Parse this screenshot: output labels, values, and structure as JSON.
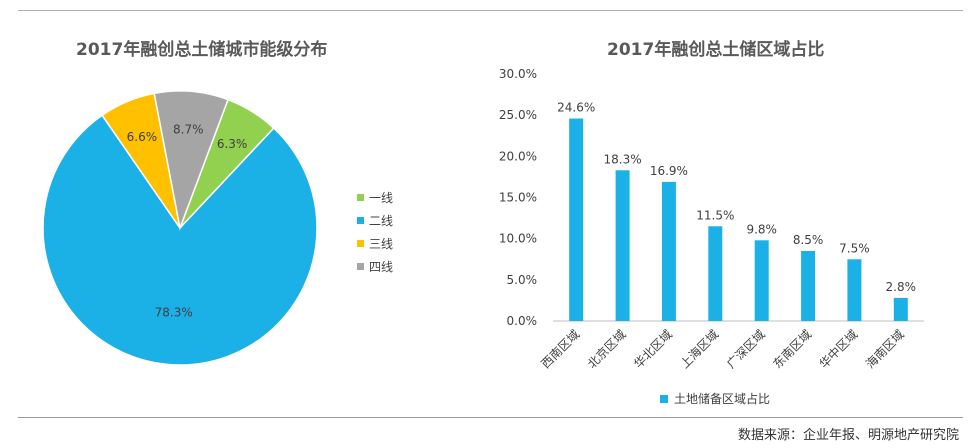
{
  "pie_chart": {
    "title": "2017年融创总土储城市能级分布"
  },
  "bar_chart": {
    "title": "2017年融创总土储区域占比"
  },
  "source": "数据来源：企业年报、明源地产研究院",
  "colors": {
    "first_tier": "#92d050",
    "second_tier": "#1bb1e7",
    "third_tier": "#ffc000",
    "fourth_tier": "#a5a5a5",
    "bar": "#1bb1e7"
  },
  "chart_data": [
    {
      "type": "pie",
      "title": "2017年融创总土储城市能级分布",
      "series": [
        {
          "name": "一线",
          "value": 6.3,
          "label": "6.3%",
          "color": "#92d050"
        },
        {
          "name": "二线",
          "value": 78.3,
          "label": "78.3%",
          "color": "#1bb1e7"
        },
        {
          "name": "三线",
          "value": 6.6,
          "label": "6.6%",
          "color": "#ffc000"
        },
        {
          "name": "四线",
          "value": 8.7,
          "label": "8.7%",
          "color": "#a5a5a5"
        }
      ],
      "legend_position": "right"
    },
    {
      "type": "bar",
      "title": "2017年融创总土储区域占比",
      "categories": [
        "西南区域",
        "北京区域",
        "华北区域",
        "上海区域",
        "广深区域",
        "东南区域",
        "华中区域",
        "海南区域"
      ],
      "series": [
        {
          "name": "土地储备区域占比",
          "values": [
            24.6,
            18.3,
            16.9,
            11.5,
            9.8,
            8.5,
            7.5,
            2.8
          ],
          "labels": [
            "24.6%",
            "18.3%",
            "16.9%",
            "11.5%",
            "9.8%",
            "8.5%",
            "7.5%",
            "2.8%"
          ]
        }
      ],
      "yticks": [
        "0.0%",
        "5.0%",
        "10.0%",
        "15.0%",
        "20.0%",
        "25.0%",
        "30.0%"
      ],
      "ylim": [
        0,
        30
      ],
      "grid": false,
      "legend_position": "bottom"
    }
  ]
}
